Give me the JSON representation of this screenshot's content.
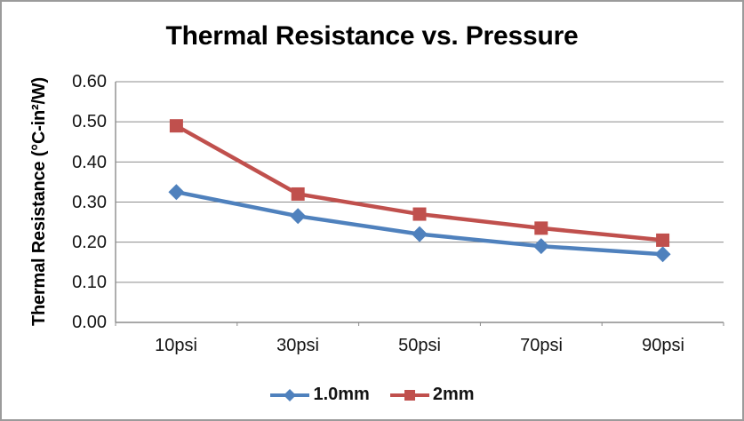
{
  "chart_data": {
    "type": "line",
    "title": "Thermal Resistance vs. Pressure",
    "categories": [
      "10psi",
      "30psi",
      "50psi",
      "70psi",
      "90psi"
    ],
    "series": [
      {
        "name": "1.0mm",
        "marker": "diamond",
        "color": "#4F81BD",
        "values": [
          0.325,
          0.265,
          0.22,
          0.19,
          0.17
        ]
      },
      {
        "name": "2mm",
        "marker": "square",
        "color": "#C0504D",
        "values": [
          0.49,
          0.32,
          0.27,
          0.235,
          0.205
        ]
      }
    ],
    "xlabel": "",
    "ylabel": "Thermal Resistance (°C-in²/W)",
    "ylim": [
      0,
      0.6
    ],
    "ytick_step": 0.1,
    "yticks": [
      "0.00",
      "0.10",
      "0.20",
      "0.30",
      "0.40",
      "0.50",
      "0.60"
    ],
    "grid": true,
    "legend_position": "bottom",
    "colors": {
      "gridline": "#8c8c8c",
      "axis": "#8c8c8c",
      "frame_border": "#9b9b9b",
      "text": "#141414",
      "background": "#ffffff"
    }
  }
}
